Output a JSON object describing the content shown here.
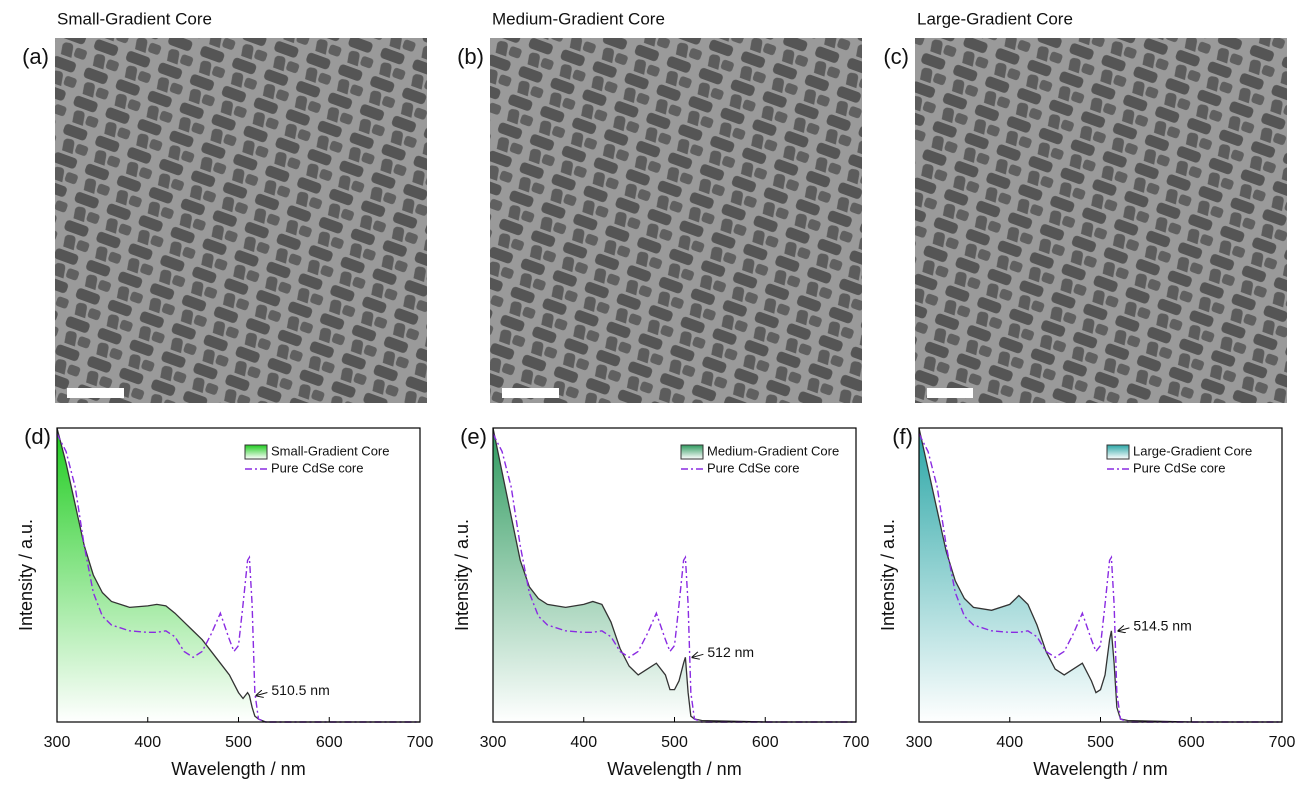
{
  "panels": [
    {
      "label": "(a)",
      "title": "Small-Gradient Core"
    },
    {
      "label": "(b)",
      "title": "Medium-Gradient Core"
    },
    {
      "label": "(c)",
      "title": "Large-Gradient Core"
    }
  ],
  "chart_data": [
    {
      "type": "area",
      "label": "(d)",
      "x_label": "Wavelength / nm",
      "y_label": "Intensity / a.u.",
      "x": [
        300,
        310,
        320,
        330,
        340,
        350,
        360,
        380,
        400,
        410,
        420,
        430,
        440,
        450,
        460,
        470,
        480,
        490,
        495,
        500,
        505,
        510,
        512,
        515,
        518,
        522,
        530,
        600,
        700
      ],
      "xlim": [
        300,
        700
      ],
      "xticks": [
        300,
        400,
        500,
        600,
        700
      ],
      "ylim": [
        0,
        1
      ],
      "legend": "upper right",
      "series": [
        {
          "name": "Small-Gradient Core",
          "color": "#1fcc1f",
          "values": [
            1,
            0.88,
            0.74,
            0.6,
            0.5,
            0.44,
            0.41,
            0.39,
            0.395,
            0.4,
            0.395,
            0.37,
            0.34,
            0.31,
            0.28,
            0.24,
            0.2,
            0.16,
            0.13,
            0.1,
            0.08,
            0.1,
            0.09,
            0.05,
            0.02,
            0.01,
            0,
            0,
            0
          ]
        },
        {
          "name": "Pure CdSe core",
          "color": "#8a2be2",
          "style": "dash-dot",
          "values": [
            0.98,
            0.92,
            0.8,
            0.6,
            0.44,
            0.36,
            0.33,
            0.31,
            0.305,
            0.305,
            0.31,
            0.29,
            0.24,
            0.22,
            0.24,
            0.3,
            0.37,
            0.28,
            0.24,
            0.26,
            0.4,
            0.55,
            0.56,
            0.4,
            0.1,
            0.01,
            0,
            0,
            0
          ]
        }
      ],
      "annotations": [
        "510.5 nm"
      ]
    },
    {
      "type": "area",
      "label": "(e)",
      "x_label": "Wavelength / nm",
      "y_label": "Intensity / a.u.",
      "x": [
        300,
        310,
        320,
        330,
        340,
        350,
        360,
        380,
        400,
        410,
        420,
        430,
        440,
        450,
        460,
        470,
        480,
        490,
        495,
        500,
        505,
        510,
        512,
        515,
        518,
        522,
        530,
        600,
        700
      ],
      "xlim": [
        300,
        700
      ],
      "xticks": [
        300,
        400,
        500,
        600,
        700
      ],
      "ylim": [
        0,
        1
      ],
      "legend": "upper right",
      "series": [
        {
          "name": "Medium-Gradient Core",
          "color": "#2e9a5e",
          "values": [
            1,
            0.85,
            0.7,
            0.55,
            0.46,
            0.42,
            0.4,
            0.39,
            0.4,
            0.41,
            0.4,
            0.34,
            0.25,
            0.19,
            0.16,
            0.18,
            0.2,
            0.16,
            0.11,
            0.11,
            0.14,
            0.2,
            0.22,
            0.1,
            0.02,
            0.01,
            0.005,
            0,
            0
          ]
        },
        {
          "name": "Pure CdSe core",
          "color": "#8a2be2",
          "style": "dash-dot",
          "values": [
            0.98,
            0.92,
            0.8,
            0.6,
            0.44,
            0.36,
            0.33,
            0.31,
            0.305,
            0.305,
            0.31,
            0.29,
            0.24,
            0.22,
            0.24,
            0.3,
            0.37,
            0.28,
            0.24,
            0.26,
            0.4,
            0.55,
            0.56,
            0.4,
            0.1,
            0.01,
            0,
            0,
            0
          ]
        }
      ],
      "annotations": [
        "512 nm"
      ]
    },
    {
      "type": "area",
      "label": "(f)",
      "x_label": "Wavelength / nm",
      "y_label": "Intensity / a.u.",
      "x": [
        300,
        310,
        320,
        330,
        340,
        350,
        360,
        380,
        400,
        410,
        420,
        430,
        440,
        450,
        460,
        470,
        480,
        490,
        495,
        500,
        505,
        510,
        512,
        515,
        518,
        522,
        530,
        600,
        700
      ],
      "xlim": [
        300,
        700
      ],
      "xticks": [
        300,
        400,
        500,
        600,
        700
      ],
      "ylim": [
        0,
        1
      ],
      "legend": "upper right",
      "series": [
        {
          "name": "Large-Gradient Core",
          "color": "#2aa6a6",
          "values": [
            1,
            0.86,
            0.72,
            0.58,
            0.48,
            0.42,
            0.39,
            0.38,
            0.4,
            0.43,
            0.4,
            0.33,
            0.24,
            0.18,
            0.16,
            0.18,
            0.2,
            0.14,
            0.1,
            0.11,
            0.16,
            0.28,
            0.31,
            0.2,
            0.05,
            0.01,
            0.005,
            0,
            0
          ]
        },
        {
          "name": "Pure CdSe core",
          "color": "#8a2be2",
          "style": "dash-dot",
          "values": [
            0.98,
            0.92,
            0.8,
            0.6,
            0.44,
            0.36,
            0.33,
            0.31,
            0.305,
            0.305,
            0.31,
            0.29,
            0.24,
            0.22,
            0.24,
            0.3,
            0.37,
            0.28,
            0.24,
            0.26,
            0.4,
            0.55,
            0.56,
            0.4,
            0.1,
            0.01,
            0,
            0,
            0
          ]
        }
      ],
      "annotations": [
        "514.5 nm"
      ]
    }
  ]
}
